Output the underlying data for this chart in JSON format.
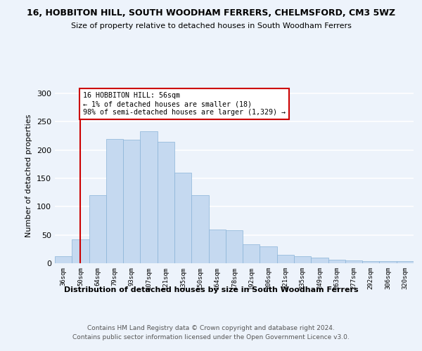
{
  "title1": "16, HOBBITON HILL, SOUTH WOODHAM FERRERS, CHELMSFORD, CM3 5WZ",
  "title2": "Size of property relative to detached houses in South Woodham Ferrers",
  "xlabel": "Distribution of detached houses by size in South Woodham Ferrers",
  "ylabel": "Number of detached properties",
  "categories": [
    "36sqm",
    "50sqm",
    "64sqm",
    "79sqm",
    "93sqm",
    "107sqm",
    "121sqm",
    "135sqm",
    "150sqm",
    "164sqm",
    "178sqm",
    "192sqm",
    "206sqm",
    "221sqm",
    "235sqm",
    "249sqm",
    "263sqm",
    "277sqm",
    "292sqm",
    "306sqm",
    "320sqm"
  ],
  "values": [
    12,
    42,
    120,
    220,
    218,
    233,
    215,
    160,
    120,
    60,
    58,
    33,
    30,
    15,
    12,
    10,
    6,
    5,
    4,
    4,
    4
  ],
  "bar_color": "#c5d9f0",
  "bar_edge_color": "#8ab4d8",
  "annotation_text": [
    "16 HOBBITON HILL: 56sqm",
    "← 1% of detached houses are smaller (18)",
    "98% of semi-detached houses are larger (1,329) →"
  ],
  "annotation_box_color": "#ffffff",
  "annotation_box_edge_color": "#cc0000",
  "vline_x_index": 1,
  "vline_color": "#cc0000",
  "ylim": [
    0,
    310
  ],
  "yticks": [
    0,
    50,
    100,
    150,
    200,
    250,
    300
  ],
  "footer1": "Contains HM Land Registry data © Crown copyright and database right 2024.",
  "footer2": "Contains public sector information licensed under the Open Government Licence v3.0.",
  "bg_color": "#edf3fb",
  "plot_bg_color": "#edf3fb"
}
